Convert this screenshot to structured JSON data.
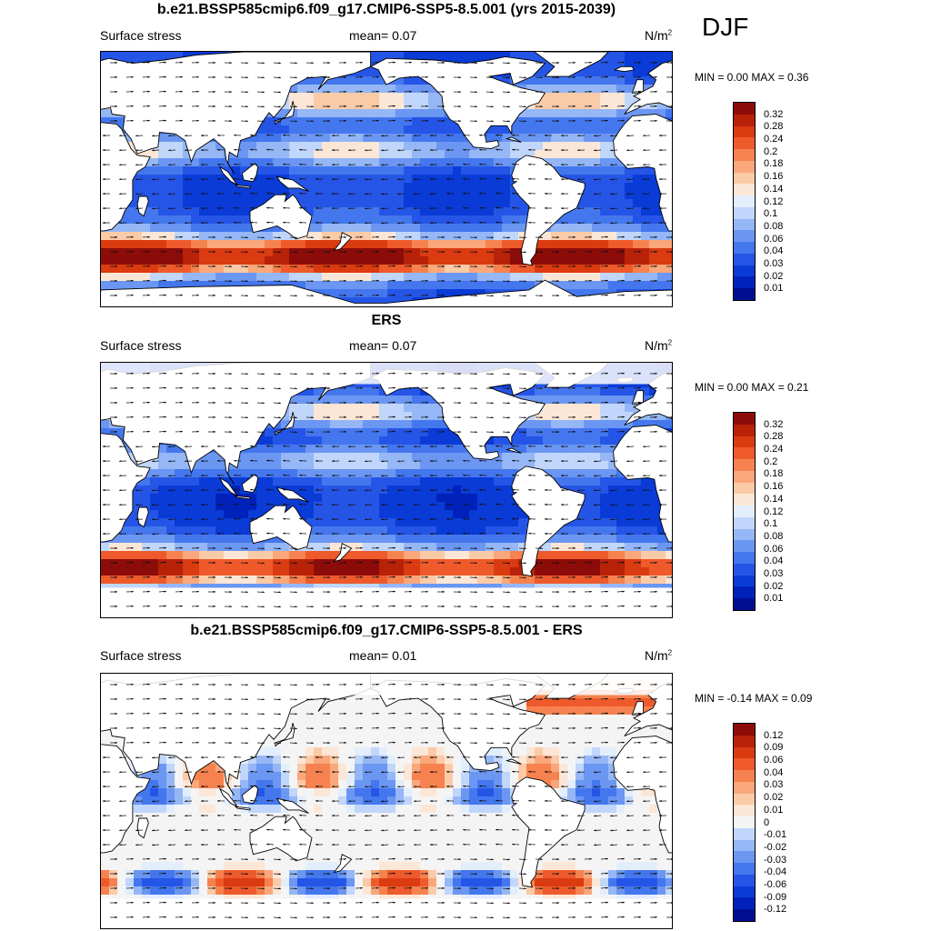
{
  "season": "DJF",
  "palette": {
    "blues": [
      "#000e8f",
      "#0022bb",
      "#0a3bd6",
      "#2555e6",
      "#4477ee",
      "#6b96f2",
      "#95b7f6",
      "#c0d6fa",
      "#e3eefc"
    ],
    "reds": [
      "#fce6d6",
      "#fbcaa6",
      "#f9a77b",
      "#f6824f",
      "#ee5a2b",
      "#da3b10",
      "#b82208",
      "#8c0c0a"
    ],
    "neutral": "#f4f4f4",
    "land": "#ffffff"
  },
  "panels": [
    {
      "title": "b.e21.BSSP585cmip6.f09_g17.CMIP6-SSP5-8.5.001 (yrs 2015-2039)",
      "variable": "Surface stress",
      "mean": "mean=   0.07",
      "units": "N/m",
      "units_sup": "2",
      "minmax": "MIN =    0.00 MAX =    0.36",
      "colorbar_labels": [
        "0.32",
        "0.28",
        "0.24",
        "0.2",
        "0.18",
        "0.16",
        "0.14",
        "0.12",
        "0.1",
        "0.08",
        "0.06",
        "0.04",
        "0.03",
        "0.02",
        "0.01"
      ],
      "field_type": "model",
      "masked": false
    },
    {
      "title": "ERS",
      "variable": "Surface stress",
      "mean": "mean=   0.07",
      "units": "N/m",
      "units_sup": "2",
      "minmax": "MIN =    0.00 MAX =    0.21",
      "colorbar_labels": [
        "0.32",
        "0.28",
        "0.24",
        "0.2",
        "0.18",
        "0.16",
        "0.14",
        "0.12",
        "0.1",
        "0.08",
        "0.06",
        "0.04",
        "0.03",
        "0.02",
        "0.01"
      ],
      "field_type": "obs",
      "masked": true
    },
    {
      "title": "b.e21.BSSP585cmip6.f09_g17.CMIP6-SSP5-8.5.001 - ERS",
      "variable": "Surface stress",
      "mean": "mean=   0.01",
      "units": "N/m",
      "units_sup": "2",
      "minmax": "MIN =  -0.14 MAX =    0.09",
      "colorbar_labels": [
        "0.12",
        "0.09",
        "0.06",
        "0.04",
        "0.03",
        "0.02",
        "0.01",
        "0",
        "-0.01",
        "-0.02",
        "-0.03",
        "-0.04",
        "-0.06",
        "-0.09",
        "-0.12"
      ],
      "field_type": "diff",
      "masked": true
    }
  ]
}
